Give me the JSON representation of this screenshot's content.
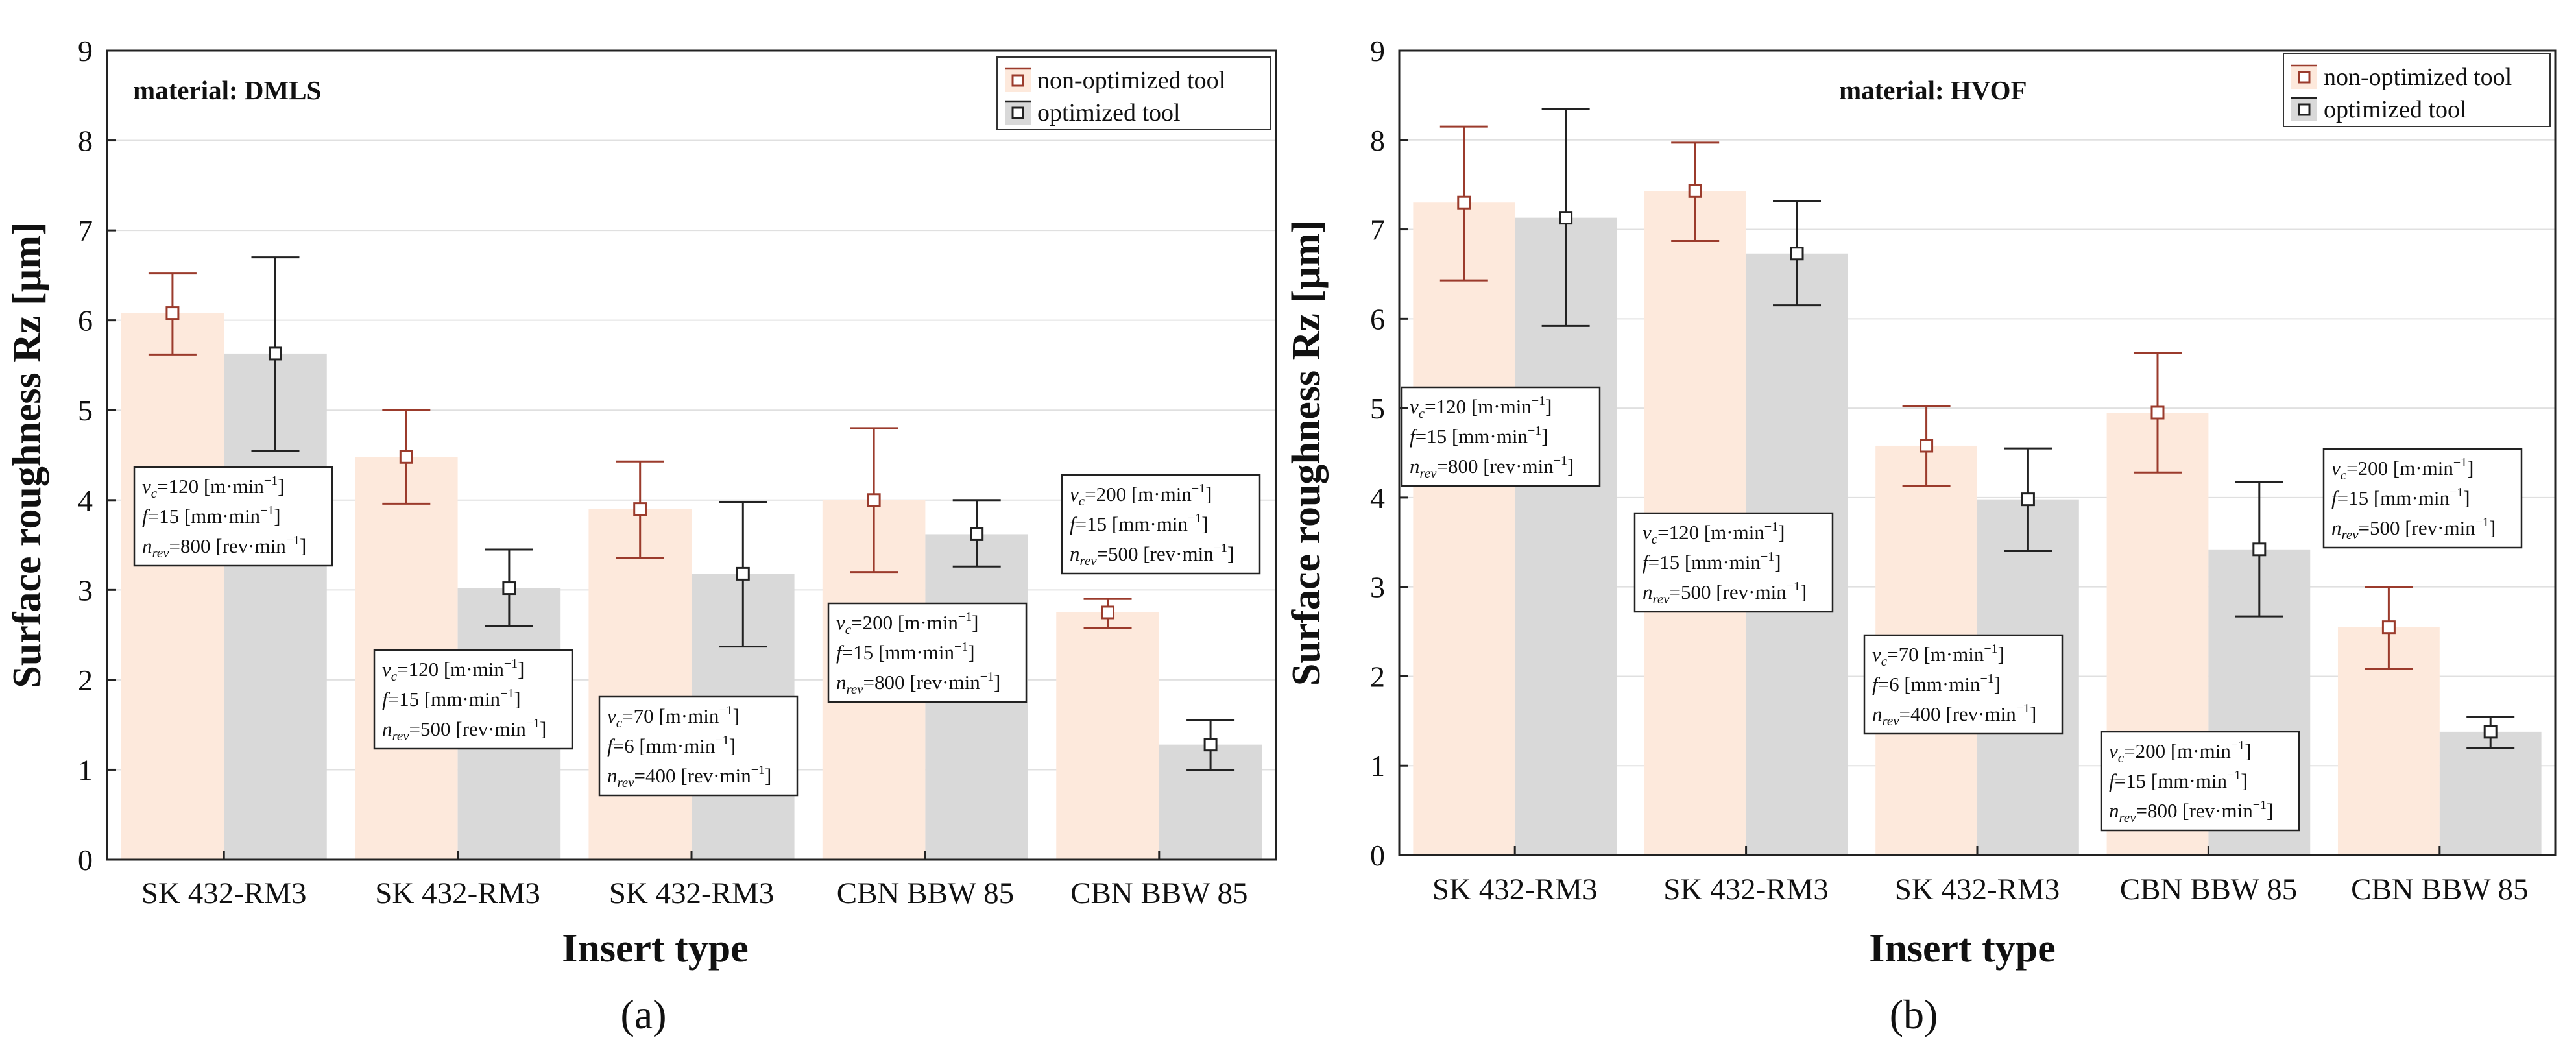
{
  "chart_data": [
    {
      "type": "bar",
      "caption": "(a)",
      "material": "material: DMLS",
      "xlabel": "Insert type",
      "ylabel": "Surface roughness Rz [µm]",
      "ylim": [
        0,
        9
      ],
      "yticks": [
        "0",
        "1",
        "2",
        "3",
        "4",
        "5",
        "6",
        "7",
        "8",
        "9"
      ],
      "categories": [
        "SK 432-RM3",
        "SK 432-RM3",
        "SK 432-RM3",
        "CBN BBW 85",
        "CBN BBW 85"
      ],
      "grid": true,
      "legend_position": "top-right",
      "colors": {
        "non_optimized_bar": "#fde9dc",
        "non_optimized_err": "#9b3b2c",
        "optimized_bar": "#d9d9d9",
        "optimized_err": "#222222"
      },
      "series": [
        {
          "name": "non-optimized tool",
          "values": [
            6.08,
            4.48,
            3.9,
            4.0,
            2.75
          ],
          "err_low": [
            5.62,
            3.96,
            3.36,
            3.2,
            2.58
          ],
          "err_high": [
            6.52,
            5.0,
            4.43,
            4.8,
            2.9
          ]
        },
        {
          "name": "optimized tool",
          "values": [
            5.63,
            3.02,
            3.18,
            3.62,
            1.28
          ],
          "err_low": [
            4.55,
            2.6,
            2.37,
            3.26,
            1.0
          ],
          "err_high": [
            6.7,
            3.45,
            3.98,
            4.0,
            1.55
          ]
        }
      ],
      "annotations": [
        {
          "vc": "120",
          "vunit": "[m·min",
          "f": "15",
          "funit": "[mm·min",
          "n": "800",
          "nunit": "[rev·min",
          "exp": "−1",
          "close": "]"
        },
        {
          "vc": "120",
          "vunit": "[m·min",
          "f": "15",
          "funit": "[mm·min",
          "n": "500",
          "nunit": "[rev·min",
          "exp": "−1",
          "close": "]"
        },
        {
          "vc": "70",
          "vunit": "[m·min",
          "f": "6",
          "funit": "[mm·min",
          "n": "400",
          "nunit": "[rev·min",
          "exp": "−1",
          "close": "]"
        },
        {
          "vc": "200",
          "vunit": "[m·min",
          "f": "15",
          "funit": "[mm·min",
          "n": "800",
          "nunit": "[rev·min",
          "exp": "−1",
          "close": "]"
        },
        {
          "vc": "200",
          "vunit": "[m·min",
          "f": "15",
          "funit": "[mm·min",
          "n": "500",
          "nunit": "[rev·min",
          "exp": "−1",
          "close": "]"
        }
      ]
    },
    {
      "type": "bar",
      "caption": "(b)",
      "material": "material: HVOF",
      "xlabel": "Insert type",
      "ylabel": "Surface roughness Rz [µm]",
      "ylim": [
        0,
        9
      ],
      "yticks": [
        "0",
        "1",
        "2",
        "3",
        "4",
        "5",
        "6",
        "7",
        "8",
        "9"
      ],
      "categories": [
        "SK 432-RM3",
        "SK 432-RM3",
        "SK 432-RM3",
        "CBN BBW 85",
        "CBN BBW 85"
      ],
      "grid": true,
      "legend_position": "top-right",
      "colors": {
        "non_optimized_bar": "#fde9dc",
        "non_optimized_err": "#9b3b2c",
        "optimized_bar": "#d9d9d9",
        "optimized_err": "#222222"
      },
      "series": [
        {
          "name": "non-optimized tool",
          "values": [
            7.3,
            7.43,
            4.58,
            4.95,
            2.55
          ],
          "err_low": [
            6.43,
            6.87,
            4.13,
            4.28,
            2.08
          ],
          "err_high": [
            8.15,
            7.97,
            5.02,
            5.62,
            3.0
          ]
        },
        {
          "name": "optimized tool",
          "values": [
            7.13,
            6.73,
            3.98,
            3.42,
            1.38
          ],
          "err_low": [
            5.92,
            6.15,
            3.4,
            2.67,
            1.2
          ],
          "err_high": [
            8.35,
            7.32,
            4.55,
            4.17,
            1.55
          ]
        }
      ],
      "annotations": [
        {
          "vc": "120",
          "vunit": "[m·min",
          "f": "15",
          "funit": "[mm·min",
          "n": "800",
          "nunit": "[rev·min",
          "exp": "−1",
          "close": "]"
        },
        {
          "vc": "120",
          "vunit": "[m·min",
          "f": "15",
          "funit": "[mm·min",
          "n": "500",
          "nunit": "[rev·min",
          "exp": "−1",
          "close": "]"
        },
        {
          "vc": "70",
          "vunit": "[m·min",
          "f": "6",
          "funit": "[mm·min",
          "n": "400",
          "nunit": "[rev·min",
          "exp": "−1",
          "close": "]"
        },
        {
          "vc": "200",
          "vunit": "[m·min",
          "f": "15",
          "funit": "[mm·min",
          "n": "800",
          "nunit": "[rev·min",
          "exp": "−1",
          "close": "]"
        },
        {
          "vc": "200",
          "vunit": "[m·min",
          "f": "15",
          "funit": "[mm·min",
          "n": "500",
          "nunit": "[rev·min",
          "exp": "−1",
          "close": "]"
        }
      ]
    }
  ]
}
